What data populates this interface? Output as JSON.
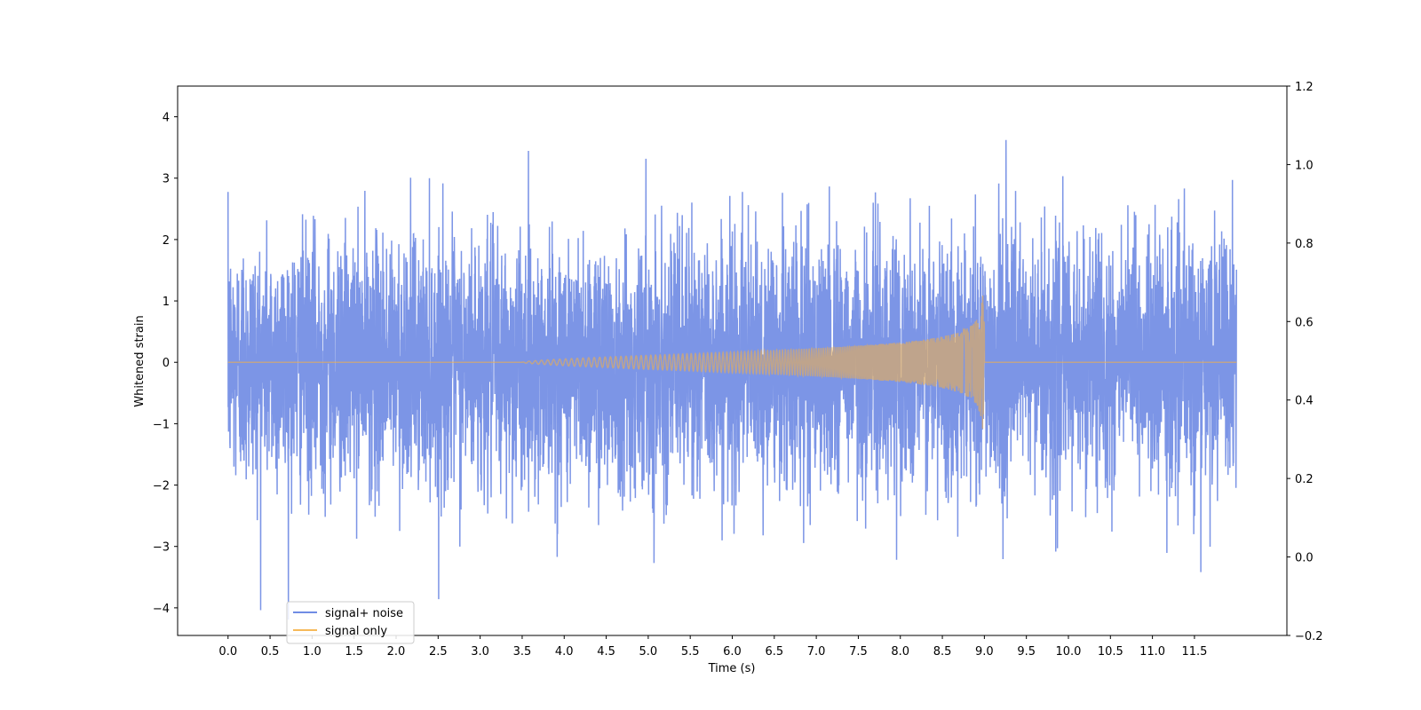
{
  "chart_data": {
    "type": "line",
    "xlabel": "Time (s)",
    "ylabel": "Whitened strain",
    "xlim": [
      -0.6,
      12.6
    ],
    "ylim": [
      -4.45,
      4.5
    ],
    "y2lim": [
      -0.2,
      1.2
    ],
    "x_ticks": [
      "0.0",
      "0.5",
      "1.0",
      "1.5",
      "2.0",
      "2.5",
      "3.0",
      "3.5",
      "4.0",
      "4.5",
      "5.0",
      "5.5",
      "6.0",
      "6.5",
      "7.0",
      "7.5",
      "8.0",
      "8.5",
      "9.0",
      "9.5",
      "10.0",
      "10.5",
      "11.0",
      "11.5"
    ],
    "y_ticks": [
      "−4",
      "−3",
      "−2",
      "−1",
      "0",
      "1",
      "2",
      "3",
      "4"
    ],
    "y2_ticks": [
      "−0.2",
      "0.0",
      "0.2",
      "0.4",
      "0.6",
      "0.8",
      "1.0",
      "1.2"
    ],
    "legend_placement": "lower-left",
    "grid": false,
    "series": [
      {
        "name": "signal+ noise",
        "color": "#5b7be0",
        "description": "Gaussian noise with std about 1.0 sampled from t=0 to t=12 s, peaks near ±4; contains the chirp signal",
        "t_start": 0.0,
        "t_end": 12.0,
        "noise_std": 1.0
      },
      {
        "name": "signal only",
        "color": "#f5b042",
        "description": "Chirp signal with amplitude growing from ~0 at 3.5 s to ~1.1 at 9.0 s, then dropping to zero",
        "chirp_start": 3.5,
        "merger_time": 9.0,
        "peak_amplitude": 1.1,
        "t_start": 0.0,
        "t_end": 12.0
      }
    ]
  }
}
